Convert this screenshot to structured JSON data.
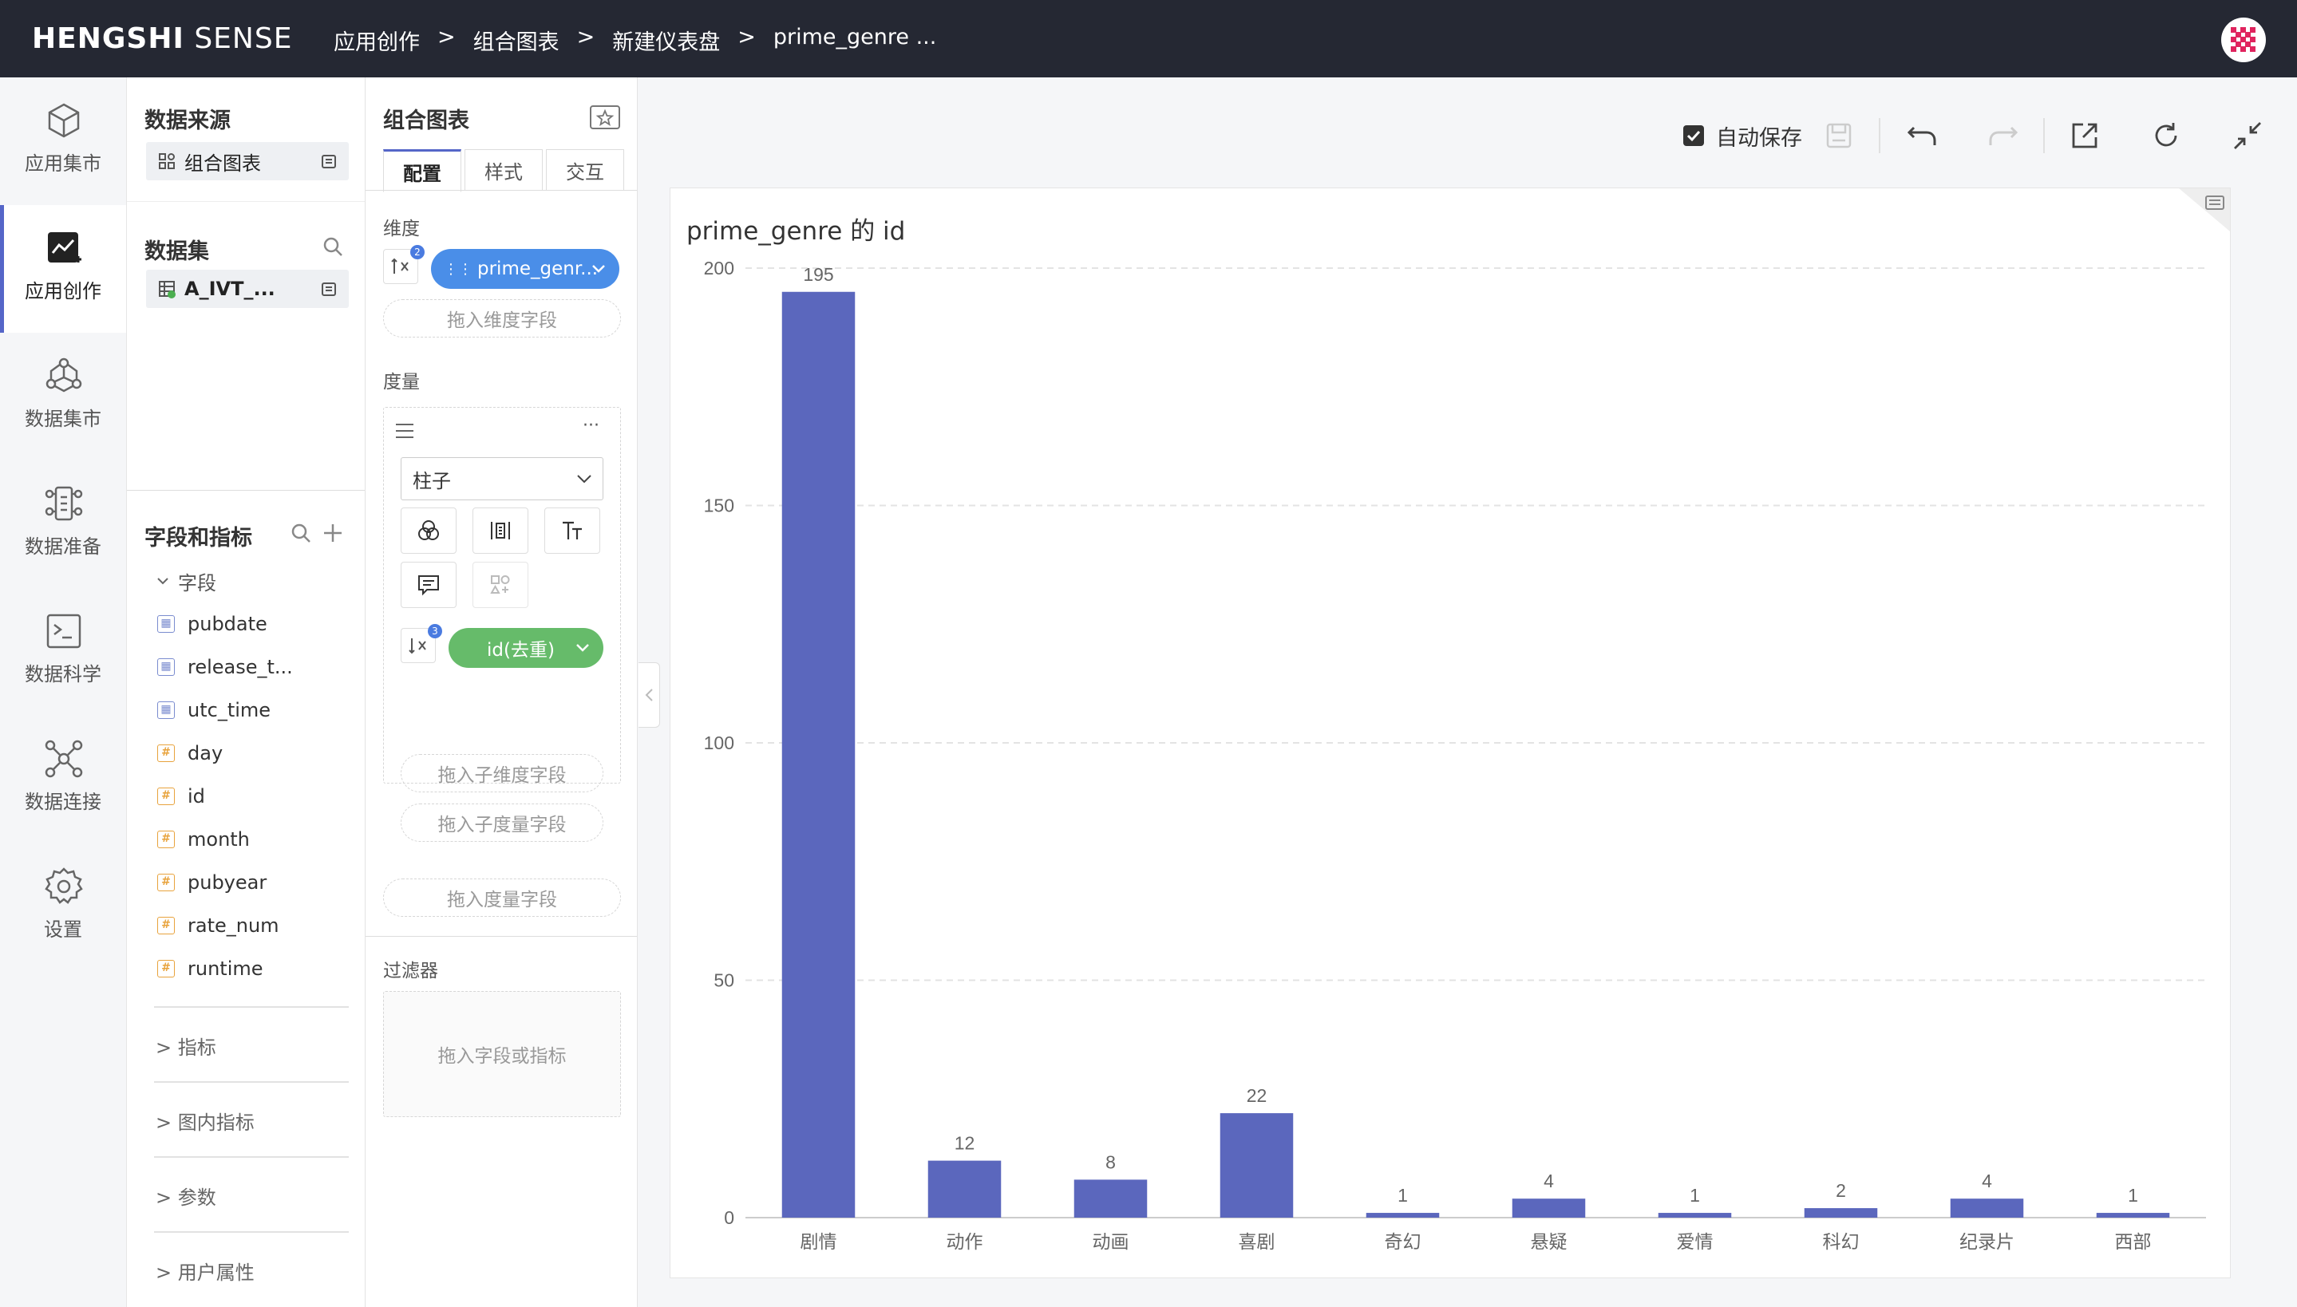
{
  "app": {
    "brand_bold": "HENGSHI",
    "brand_light": "SENSE",
    "breadcrumbs": [
      "应用创作",
      "组合图表",
      "新建仪表盘",
      "prime_genre ..."
    ],
    "breadcrumb_sep": ">"
  },
  "nav": [
    {
      "label": "应用集市",
      "icon": "cube-icon"
    },
    {
      "label": "应用创作",
      "icon": "chart-create-icon",
      "active": true
    },
    {
      "label": "数据集市",
      "icon": "hexagon-network-icon"
    },
    {
      "label": "数据准备",
      "icon": "data-prep-icon"
    },
    {
      "label": "数据科学",
      "icon": "terminal-icon"
    },
    {
      "label": "数据连接",
      "icon": "connection-icon"
    },
    {
      "label": "设置",
      "icon": "gear-icon"
    }
  ],
  "panel_source": {
    "datasource_title": "数据来源",
    "datasource_chip": "组合图表",
    "dataset_title": "数据集",
    "dataset_chip": "A_IVT_...",
    "fields_title": "字段和指标",
    "fields_group": "字段",
    "fields": [
      {
        "name": "pubdate",
        "type": "date"
      },
      {
        "name": "release_t...",
        "type": "date"
      },
      {
        "name": "utc_time",
        "type": "date"
      },
      {
        "name": "day",
        "type": "num"
      },
      {
        "name": "id",
        "type": "num"
      },
      {
        "name": "month",
        "type": "num"
      },
      {
        "name": "pubyear",
        "type": "num"
      },
      {
        "name": "rate_num",
        "type": "num"
      },
      {
        "name": "runtime",
        "type": "num"
      }
    ],
    "collapsed_groups": [
      "指标",
      "图内指标",
      "参数",
      "用户属性"
    ]
  },
  "panel_config": {
    "title": "组合图表",
    "tabs": [
      "配置",
      "样式",
      "交互"
    ],
    "dimension_label": "维度",
    "dimension_badge": "2",
    "dimension_pill": "prime_genr...",
    "dimension_drop": "拖入维度字段",
    "measure_label": "度量",
    "chart_type": "柱子",
    "measure_badge": "3",
    "measure_pill": "id(去重)",
    "sub_dim_drop": "拖入子维度字段",
    "sub_measure_drop": "拖入子度量字段",
    "measure_drop": "拖入度量字段",
    "filter_label": "过滤器",
    "filter_drop": "拖入字段或指标",
    "ellipsis": "···"
  },
  "toolbar": {
    "autosave_label": "自动保存",
    "autosave_checked": true
  },
  "colors": {
    "bar": "#5b67bd",
    "dimension_pill": "#4a8ee8",
    "measure_pill": "#66bb6a",
    "topbar": "#252833"
  },
  "chart_data": {
    "type": "bar",
    "title": "prime_genre 的 id",
    "categories": [
      "剧情",
      "动作",
      "动画",
      "喜剧",
      "奇幻",
      "悬疑",
      "爱情",
      "科幻",
      "纪录片",
      "西部"
    ],
    "values": [
      195,
      12,
      8,
      22,
      1,
      4,
      1,
      2,
      4,
      1
    ],
    "ylim": [
      0,
      200
    ],
    "yticks": [
      0,
      50,
      100,
      150,
      200
    ],
    "grid": true,
    "data_labels": true
  }
}
